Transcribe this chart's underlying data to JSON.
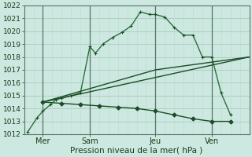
{
  "xlabel": "Pression niveau de la mer( hPa )",
  "bg_color": "#cce8e0",
  "grid_color_h": "#aaccbb",
  "grid_color_v": "#bbddcc",
  "line_color_light": "#2d6e3e",
  "line_color_dark": "#1a4d28",
  "ylim": [
    1012,
    1022
  ],
  "yticks": [
    1012,
    1013,
    1014,
    1015,
    1016,
    1017,
    1018,
    1019,
    1020,
    1021,
    1022
  ],
  "xlim": [
    0,
    12
  ],
  "xtick_labels": [
    "Mer",
    "Sam",
    "Jeu",
    "Ven"
  ],
  "xtick_positions": [
    1,
    3.5,
    7,
    10
  ],
  "vline_positions": [
    1,
    3.5,
    7,
    10
  ],
  "line1": {
    "x": [
      0.2,
      0.7,
      1.0,
      1.4,
      1.7,
      2.0,
      2.5,
      3.0,
      3.5,
      3.8,
      4.2,
      4.7,
      5.2,
      5.7,
      6.2,
      6.7,
      7.0,
      7.5,
      8.0,
      8.5,
      9.0,
      9.5,
      10.0,
      10.5,
      11.0
    ],
    "y": [
      1012.2,
      1013.3,
      1013.8,
      1014.3,
      1014.7,
      1014.8,
      1015.0,
      1015.2,
      1018.8,
      1018.3,
      1019.0,
      1019.5,
      1019.9,
      1020.4,
      1021.5,
      1021.3,
      1021.3,
      1021.1,
      1020.3,
      1019.7,
      1019.7,
      1018.0,
      1018.0,
      1015.2,
      1013.5
    ],
    "marker": "+"
  },
  "line2": {
    "x": [
      1.0,
      12.0
    ],
    "y": [
      1014.5,
      1018.0
    ]
  },
  "line3": {
    "x": [
      1.0,
      7.0,
      12.0
    ],
    "y": [
      1014.5,
      1017.0,
      1018.0
    ]
  },
  "line4": {
    "x": [
      1.0,
      2.0,
      3.0,
      4.0,
      5.0,
      6.0,
      7.0,
      8.0,
      9.0,
      10.0,
      11.0
    ],
    "y": [
      1014.5,
      1014.4,
      1014.3,
      1014.2,
      1014.1,
      1014.0,
      1013.8,
      1013.5,
      1013.2,
      1013.0,
      1013.0
    ],
    "marker": "D"
  }
}
